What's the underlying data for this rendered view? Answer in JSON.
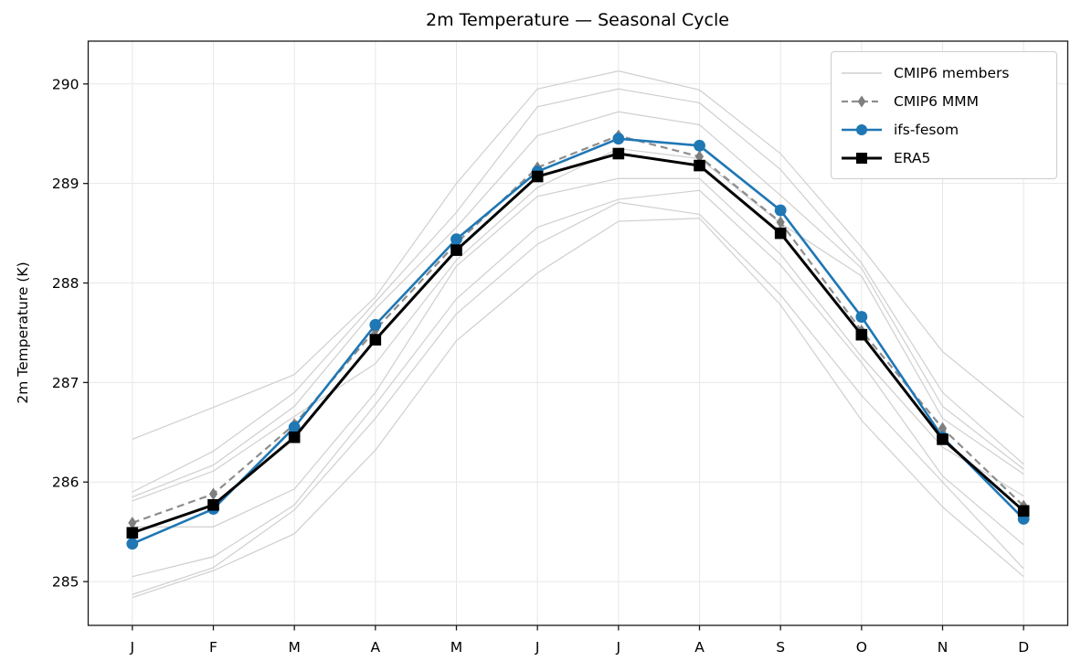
{
  "figure": {
    "title": "2m Temperature — Seasonal Cycle",
    "ylabel": "2m Temperature (K)"
  },
  "chart_data": {
    "type": "line",
    "title": "2m Temperature — Seasonal Cycle",
    "xlabel": "",
    "ylabel": "2m Temperature (K)",
    "categories": [
      "J",
      "F",
      "M",
      "A",
      "M",
      "J",
      "J",
      "A",
      "S",
      "O",
      "N",
      "D"
    ],
    "yticks": [
      285,
      286,
      287,
      288,
      289,
      290
    ],
    "ylim": [
      284.56,
      290.43
    ],
    "grid": true,
    "legend_position": "upper right",
    "colors": {
      "members": "#cfcfcf",
      "mmm_line": "#8e8e8e",
      "mmm_marker": "#7f7f7f",
      "ifs_fesom": "#1f77b4",
      "era5": "#000000",
      "gridline": "#e7e7e7",
      "axis": "#1a1a1a"
    },
    "series": [
      {
        "name": "CMIP6 members",
        "role": "ensemble",
        "marker": "none",
        "linestyle": "solid",
        "members": [
          [
            286.43,
            286.75,
            287.08,
            287.86,
            289.0,
            289.95,
            290.13,
            289.94,
            289.3,
            288.36,
            287.31,
            286.65
          ],
          [
            285.9,
            286.31,
            286.9,
            287.81,
            288.71,
            289.77,
            289.95,
            289.81,
            289.14,
            288.2,
            286.9,
            286.18
          ],
          [
            285.85,
            286.17,
            286.76,
            287.74,
            288.56,
            289.48,
            289.72,
            289.59,
            288.88,
            288.15,
            286.76,
            286.13
          ],
          [
            285.81,
            286.11,
            286.66,
            287.19,
            288.23,
            288.96,
            289.35,
            289.25,
            288.6,
            288.07,
            286.64,
            286.08
          ],
          [
            285.55,
            285.55,
            285.93,
            286.9,
            288.17,
            288.87,
            289.05,
            289.05,
            288.29,
            287.26,
            286.35,
            285.86
          ],
          [
            285.05,
            285.25,
            285.77,
            286.78,
            287.84,
            288.56,
            288.84,
            288.93,
            288.18,
            287.2,
            286.06,
            285.37
          ],
          [
            284.87,
            285.14,
            285.72,
            286.64,
            287.69,
            288.39,
            288.81,
            288.69,
            287.88,
            286.87,
            286.0,
            285.13
          ],
          [
            284.84,
            285.11,
            285.48,
            286.32,
            287.42,
            288.1,
            288.62,
            288.65,
            287.78,
            286.62,
            285.75,
            285.05
          ]
        ]
      },
      {
        "name": "CMIP6 MMM",
        "role": "mean",
        "marker": "thin-diamond",
        "linestyle": "dashed",
        "values": [
          285.59,
          285.88,
          286.58,
          287.53,
          288.4,
          289.16,
          289.48,
          289.27,
          288.61,
          287.52,
          286.54,
          285.76
        ]
      },
      {
        "name": "ifs-fesom",
        "role": "model",
        "marker": "circle",
        "linestyle": "solid",
        "values": [
          285.38,
          285.73,
          286.55,
          287.58,
          288.44,
          289.12,
          289.45,
          289.38,
          288.73,
          287.66,
          286.45,
          285.63
        ]
      },
      {
        "name": "ERA5",
        "role": "reference",
        "marker": "square",
        "linestyle": "solid",
        "values": [
          285.49,
          285.77,
          286.45,
          287.43,
          288.33,
          289.07,
          289.3,
          289.18,
          288.5,
          287.48,
          286.43,
          285.71
        ]
      }
    ]
  }
}
